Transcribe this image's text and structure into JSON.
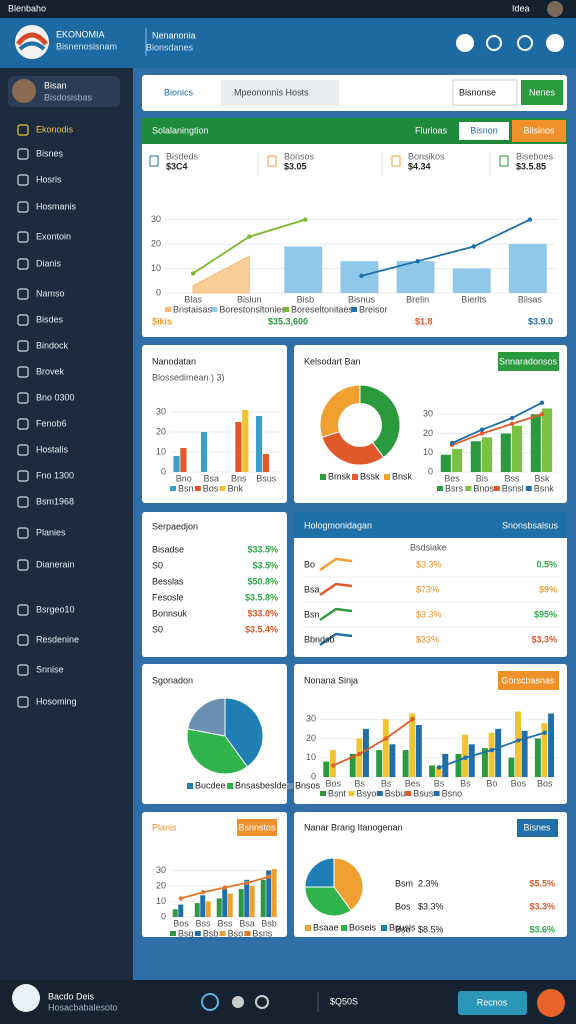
{
  "status_bar": {
    "left": "Blenbaho",
    "right": "Idea"
  },
  "header": {
    "brand": "EKONOMIA",
    "brand_sub": "Bisnenosisnam",
    "title": "Nenanonia",
    "subtitle": "Bionsdanes"
  },
  "sidebar": {
    "user": "Bisan",
    "user_sub": "Bisdosisbas",
    "items": [
      "Ekonodis",
      "Bisnes",
      "Hosris",
      "Hosmanis",
      "Exontoin",
      "Dianis",
      "Namso",
      "Bisdes",
      "Bindock",
      "Brovek",
      "Bno 0300",
      "Fenob6",
      "Hostalis",
      "Fno 1300",
      "Bsm1968",
      "Planies",
      "Dianerain",
      "Bsrgeo10",
      "Resdenine",
      "Snnise",
      "Hosoming"
    ]
  },
  "tabs": {
    "items": [
      "Bionics",
      "Mpeononnis Hosts"
    ],
    "dropdown": "Bisnonse",
    "button": "Nenes"
  },
  "panels": [
    {
      "title": "Solalaningtion",
      "buttons": [
        "Flurioas",
        "Bisnon",
        "Bilsinos"
      ],
      "kpis": [
        {
          "label": "Bisdeds",
          "value": "$3C4"
        },
        {
          "label": "Bonsos",
          "value": "$3.05"
        },
        {
          "label": "Bonsikos",
          "value": "$4.34"
        },
        {
          "label": "Biseboes",
          "value": "$3.5.85"
        }
      ],
      "chart_data": {
        "type": "bar",
        "categories": [
          "Blas",
          "Bislun",
          "Bisb",
          "Bisnus",
          "Brelin",
          "Bierlts",
          "Blisas"
        ],
        "ylim": [
          0,
          38
        ],
        "yticks": [
          0,
          10,
          20,
          30
        ],
        "grid": true,
        "series": [
          {
            "name": "Bnstaisas",
            "type": "area",
            "color": "#f5b971",
            "values": [
              3,
              15,
              null,
              null,
              null,
              null,
              null
            ]
          },
          {
            "name": "Borestonsltonies",
            "type": "bar",
            "color": "#8fc8e8",
            "values": [
              null,
              null,
              19,
              13,
              13,
              10,
              20
            ]
          },
          {
            "name": "Boreseltonitaes",
            "type": "line",
            "color": "#7cb82f",
            "values": [
              8,
              23,
              30,
              null,
              null,
              null,
              null
            ]
          },
          {
            "name": "Breisor",
            "type": "line",
            "color": "#1f6fa8",
            "values": [
              null,
              null,
              null,
              7,
              13,
              19,
              30
            ]
          }
        ]
      },
      "footer": [
        "$ikis",
        "$35.3,600",
        "$1.8",
        "$3.9.0"
      ]
    },
    {
      "title": "Nanodatan",
      "subtitle": "Blossedimean ) 3)",
      "chart_data": {
        "type": "bar",
        "categories": [
          "Bno",
          "Bsa",
          "Bns",
          "Bsus"
        ],
        "ylim": [
          0,
          40
        ],
        "yticks": [
          0,
          10,
          20,
          30
        ],
        "grid": true,
        "series": [
          {
            "name": "Bsn",
            "type": "bar",
            "color": "#3aa0c8",
            "values": [
              8,
              20,
              null,
              28
            ]
          },
          {
            "name": "Bos",
            "type": "bar",
            "color": "#e1582b",
            "values": [
              12,
              null,
              25,
              9
            ]
          },
          {
            "name": "Bnk",
            "type": "bar",
            "color": "#f0c330",
            "values": [
              null,
              null,
              31,
              null
            ]
          }
        ]
      }
    },
    {
      "title": "Kelsodart Ban",
      "buttons": [
        "Snnaradonsos"
      ],
      "chart_data": [
        {
          "type": "donut",
          "values": [
            40,
            30,
            30
          ],
          "colors": [
            "#2b9a3e",
            "#e1582b",
            "#f0a030"
          ],
          "labels": [
            "Bmsk",
            "Bssk",
            "Bnsk"
          ]
        },
        {
          "type": "bar",
          "categories": [
            "Bes",
            "Bis",
            "Bss",
            "Bsk"
          ],
          "ylim": [
            0,
            40
          ],
          "yticks": [
            0,
            10,
            20,
            30
          ],
          "grid": true,
          "series": [
            {
              "name": "Bsrs",
              "type": "bar",
              "color": "#2b9a3e",
              "values": [
                9,
                16,
                20,
                30
              ]
            },
            {
              "name": "Bnos",
              "type": "bar",
              "color": "#7ac143",
              "values": [
                12,
                18,
                24,
                33
              ]
            },
            {
              "name": "Bsnsl",
              "type": "line",
              "color": "#e05a2a",
              "values": [
                14,
                20,
                25,
                30
              ]
            },
            {
              "name": "Bsnk",
              "type": "line",
              "color": "#1f6fa8",
              "values": [
                15,
                22,
                28,
                36
              ]
            }
          ]
        }
      ]
    },
    {
      "title": "Serpaedjon",
      "rows": [
        {
          "label": "Bisadse",
          "value": "$33.5%",
          "color": "#2fa84a"
        },
        {
          "label": "S0",
          "value": "$3.5%",
          "color": "#2fa84a"
        },
        {
          "label": "Besslas",
          "value": "$50.8%",
          "color": "#2fa84a"
        },
        {
          "label": "Fesosle",
          "value": "$3.5.8%",
          "color": "#2fa84a"
        },
        {
          "label": "Bonnsuk",
          "value": "$33.0%",
          "color": "#e1582b"
        },
        {
          "label": "S0",
          "value": "$3.5.4%",
          "color": "#e1582b"
        }
      ]
    },
    {
      "title": "Hologmonidagan",
      "buttons": [
        "Snonsbsalsus"
      ],
      "column": "Bsdsiake",
      "rows": [
        {
          "label": "Bo",
          "value": "$3.3%",
          "change": "0.5%",
          "color": "#2fa84a"
        },
        {
          "label": "Bsa",
          "value": "$73%",
          "change": "$9%",
          "color": "#f0a030"
        },
        {
          "label": "Bsn",
          "value": "$3.3%",
          "change": "$95%",
          "color": "#2fa84a"
        },
        {
          "label": "Bbndsb",
          "value": "$33%",
          "change": "$3.3%",
          "color": "#e1582b"
        }
      ]
    },
    {
      "title": "Sgonadon",
      "chart_data": {
        "type": "pie",
        "values": [
          40,
          38,
          22
        ],
        "colors": [
          "#1f7fb5",
          "#2fb34a",
          "#6a8fb0"
        ],
        "labels": [
          "Bucdee",
          "Bnsasbeslde",
          "Bnsos"
        ]
      }
    },
    {
      "title": "Nonana Sinja",
      "buttons": [
        "Gorscbasnas"
      ],
      "chart_data": {
        "type": "bar",
        "categories": [
          "Bos",
          "Bs",
          "Bs",
          "Bes",
          "Bs",
          "Bs",
          "Bo",
          "Bos",
          "Bos"
        ],
        "ylim": [
          0,
          40
        ],
        "yticks": [
          0,
          10,
          20,
          30
        ],
        "grid": true,
        "series": [
          {
            "name": "Bsnt",
            "type": "bar",
            "color": "#2b9a3e",
            "values": [
              8,
              12,
              14,
              14,
              6,
              12,
              15,
              10,
              20
            ]
          },
          {
            "name": "Bsyo",
            "type": "bar",
            "color": "#f0c330",
            "values": [
              14,
              20,
              30,
              33,
              5,
              22,
              23,
              34,
              28
            ]
          },
          {
            "name": "Bsbu",
            "type": "bar",
            "color": "#1f6fa8",
            "values": [
              null,
              25,
              17,
              27,
              12,
              17,
              25,
              24,
              33
            ]
          },
          {
            "name": "Bsus",
            "type": "line",
            "color": "#e05a2a",
            "values": [
              6,
              12,
              20,
              30,
              null,
              null,
              null,
              null,
              null
            ]
          },
          {
            "name": "Bsno",
            "type": "line",
            "color": "#1f6fa8",
            "values": [
              null,
              null,
              null,
              null,
              5,
              10,
              14,
              19,
              23
            ]
          }
        ]
      }
    },
    {
      "title": "Planis",
      "buttons": [
        "Bsnnstos"
      ],
      "chart_data": {
        "type": "bar",
        "categories": [
          "Bos",
          "Bss",
          "Bss",
          "Bsa",
          "Bsb"
        ],
        "ylim": [
          0,
          40
        ],
        "yticks": [
          0,
          10,
          20,
          30
        ],
        "grid": true,
        "series": [
          {
            "name": "Bsg",
            "type": "bar",
            "color": "#2b9a3e",
            "values": [
              5,
              9,
              12,
              18,
              24
            ]
          },
          {
            "name": "Bsb",
            "type": "bar",
            "color": "#1f6fa8",
            "values": [
              8,
              14,
              18,
              24,
              30
            ]
          },
          {
            "name": "Bso",
            "type": "bar",
            "color": "#f0a030",
            "values": [
              null,
              10,
              15,
              20,
              31
            ]
          },
          {
            "name": "Bsns",
            "type": "line",
            "color": "#e0782a",
            "values": [
              12,
              16,
              19,
              22,
              26
            ]
          }
        ]
      }
    },
    {
      "title": "Nanar Brang Itanogenan",
      "buttons": [
        "Bisnes"
      ],
      "chart_data": {
        "type": "pie",
        "values": [
          40,
          35,
          25
        ],
        "colors": [
          "#f0a030",
          "#2fb34a",
          "#1f7fb5"
        ],
        "labels": [
          "Bsaae",
          "Boseis",
          "Bsusis"
        ]
      },
      "rows": [
        {
          "label": "Bsm",
          "value": "2.3%",
          "change": "$5.5%",
          "color": "#e1582b"
        },
        {
          "label": "Bos",
          "value": "$3.3%",
          "change": "$3.3%",
          "color": "#e1582b"
        },
        {
          "label": "Bso",
          "value": "$8.5%",
          "change": "$3.6%",
          "color": "#2fa84a"
        }
      ]
    }
  ],
  "footer": {
    "name": "Bacdo Deis",
    "sub": "Hosacbabalesoto",
    "code": "$Q50S",
    "button": "Recnos"
  }
}
